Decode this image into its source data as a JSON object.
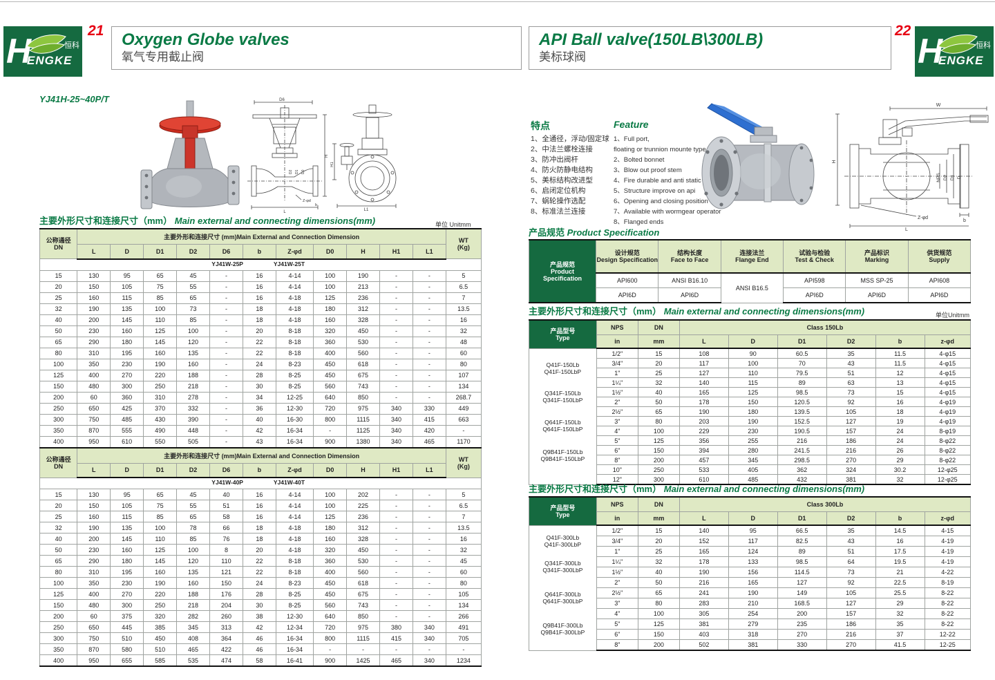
{
  "colors": {
    "brand_green": "#156a40",
    "title_green": "#0a7a45",
    "page_red": "#e60012",
    "table_header_bg": "#dfe9c4"
  },
  "brand": {
    "wordmark_initial": "H",
    "wordmark_rest": "ENGKE",
    "cn": "恒科®"
  },
  "page_left": {
    "page_number": "21",
    "title_en": "Oxygen Globe valves",
    "title_cn": "氧气专用截止阀",
    "model": "YJ41H-25~40P/T",
    "dims_title_cn": "主要外形尺寸和连接尺寸（mm）",
    "dims_title_en": "Main external and connecting dimensions(mm)",
    "unit_label": "单位 Unitmm",
    "drawing_labels": {
      "d6": "D6",
      "h": "H",
      "l": "L",
      "zd": "Z-φd",
      "b": "b",
      "d0": "D0",
      "d1": "D1",
      "d2": "D2",
      "h1": "H1",
      "l1": "L1"
    },
    "table": {
      "dn_header": "公称通径\nDN",
      "span_header": "主要外形和连接尺寸 (mm)Main External and Connection Dimension",
      "wt_header": "WT\n(Kg)",
      "columns": [
        "L",
        "D",
        "D1",
        "D2",
        "D6",
        "b",
        "Z-φd",
        "D0",
        "H",
        "H1",
        "L1"
      ],
      "sections": [
        {
          "model_p": "YJ41W-25P",
          "model_t": "YJ41W-25T",
          "rows": [
            [
              "15",
              "130",
              "95",
              "65",
              "45",
              "-",
              "16",
              "4-14",
              "100",
              "190",
              "-",
              "-",
              "5"
            ],
            [
              "20",
              "150",
              "105",
              "75",
              "55",
              "-",
              "16",
              "4-14",
              "100",
              "213",
              "-",
              "-",
              "6.5"
            ],
            [
              "25",
              "160",
              "115",
              "85",
              "65",
              "-",
              "16",
              "4-18",
              "125",
              "236",
              "-",
              "-",
              "7"
            ],
            [
              "32",
              "190",
              "135",
              "100",
              "73",
              "-",
              "18",
              "4-18",
              "180",
              "312",
              "-",
              "-",
              "13.5"
            ],
            [
              "40",
              "200",
              "145",
              "110",
              "85",
              "-",
              "18",
              "4-18",
              "160",
              "328",
              "-",
              "-",
              "16"
            ],
            [
              "50",
              "230",
              "160",
              "125",
              "100",
              "-",
              "20",
              "8-18",
              "320",
              "450",
              "-",
              "-",
              "32"
            ],
            [
              "65",
              "290",
              "180",
              "145",
              "120",
              "-",
              "22",
              "8-18",
              "360",
              "530",
              "-",
              "-",
              "48"
            ],
            [
              "80",
              "310",
              "195",
              "160",
              "135",
              "-",
              "22",
              "8-18",
              "400",
              "560",
              "-",
              "-",
              "60"
            ],
            [
              "100",
              "350",
              "230",
              "190",
              "160",
              "-",
              "24",
              "8-23",
              "450",
              "618",
              "-",
              "-",
              "80"
            ],
            [
              "125",
              "400",
              "270",
              "220",
              "188",
              "-",
              "28",
              "8-25",
              "450",
              "675",
              "-",
              "-",
              "107"
            ],
            [
              "150",
              "480",
              "300",
              "250",
              "218",
              "-",
              "30",
              "8-25",
              "560",
              "743",
              "-",
              "-",
              "134"
            ],
            [
              "200",
              "60",
              "360",
              "310",
              "278",
              "-",
              "34",
              "12-25",
              "640",
              "850",
              "-",
              "-",
              "268.7"
            ],
            [
              "250",
              "650",
              "425",
              "370",
              "332",
              "-",
              "36",
              "12-30",
              "720",
              "975",
              "340",
              "330",
              "449"
            ],
            [
              "300",
              "750",
              "485",
              "430",
              "390",
              "-",
              "40",
              "16-30",
              "800",
              "1115",
              "340",
              "415",
              "663"
            ],
            [
              "350",
              "870",
              "555",
              "490",
              "448",
              "-",
              "42",
              "16-34",
              "-",
              "1125",
              "340",
              "420",
              "-"
            ],
            [
              "400",
              "950",
              "610",
              "550",
              "505",
              "-",
              "43",
              "16-34",
              "900",
              "1380",
              "340",
              "465",
              "1170"
            ]
          ]
        },
        {
          "model_p": "YJ41W-40P",
          "model_t": "YJ41W-40T",
          "rows": [
            [
              "15",
              "130",
              "95",
              "65",
              "45",
              "40",
              "16",
              "4-14",
              "100",
              "202",
              "-",
              "-",
              "5"
            ],
            [
              "20",
              "150",
              "105",
              "75",
              "55",
              "51",
              "16",
              "4-14",
              "100",
              "225",
              "-",
              "-",
              "6.5"
            ],
            [
              "25",
              "160",
              "115",
              "85",
              "65",
              "58",
              "16",
              "4-14",
              "125",
              "236",
              "-",
              "-",
              "7"
            ],
            [
              "32",
              "190",
              "135",
              "100",
              "78",
              "66",
              "18",
              "4-18",
              "180",
              "312",
              "-",
              "-",
              "13.5"
            ],
            [
              "40",
              "200",
              "145",
              "110",
              "85",
              "76",
              "18",
              "4-18",
              "160",
              "328",
              "-",
              "-",
              "16"
            ],
            [
              "50",
              "230",
              "160",
              "125",
              "100",
              "8",
              "20",
              "4-18",
              "320",
              "450",
              "-",
              "-",
              "32"
            ],
            [
              "65",
              "290",
              "180",
              "145",
              "120",
              "110",
              "22",
              "8-18",
              "360",
              "530",
              "-",
              "-",
              "45"
            ],
            [
              "80",
              "310",
              "195",
              "160",
              "135",
              "121",
              "22",
              "8-18",
              "400",
              "560",
              "-",
              "-",
              "60"
            ],
            [
              "100",
              "350",
              "230",
              "190",
              "160",
              "150",
              "24",
              "8-23",
              "450",
              "618",
              "-",
              "-",
              "80"
            ],
            [
              "125",
              "400",
              "270",
              "220",
              "188",
              "176",
              "28",
              "8-25",
              "450",
              "675",
              "-",
              "-",
              "105"
            ],
            [
              "150",
              "480",
              "300",
              "250",
              "218",
              "204",
              "30",
              "8-25",
              "560",
              "743",
              "-",
              "-",
              "134"
            ],
            [
              "200",
              "60",
              "375",
              "320",
              "282",
              "260",
              "38",
              "12-30",
              "640",
              "850",
              "-",
              "-",
              "266"
            ],
            [
              "250",
              "650",
              "445",
              "385",
              "345",
              "313",
              "42",
              "12-34",
              "720",
              "975",
              "380",
              "340",
              "491"
            ],
            [
              "300",
              "750",
              "510",
              "450",
              "408",
              "364",
              "46",
              "16-34",
              "800",
              "1115",
              "415",
              "340",
              "705"
            ],
            [
              "350",
              "870",
              "580",
              "510",
              "465",
              "422",
              "46",
              "16-34",
              "-",
              "-",
              "-",
              "-",
              "-"
            ],
            [
              "400",
              "950",
              "655",
              "585",
              "535",
              "474",
              "58",
              "16-41",
              "900",
              "1425",
              "465",
              "340",
              "1234"
            ]
          ]
        }
      ]
    }
  },
  "page_right": {
    "page_number": "22",
    "title_en": "API Ball valve(150LB\\300LB)",
    "title_cn": "美标球阀",
    "features_cn_title": "特点",
    "features_en_title": "Feature",
    "features_cn": [
      "1、全通径，浮动/固定球",
      "2、中法兰螺栓连接",
      "3、防冲出阀杆",
      "4、防火防静电结构",
      "5、美标结构改进型",
      "6、启闭定位机构",
      "7、蜗轮操作选配",
      "8、标准法兰连接"
    ],
    "features_en": [
      "1、Full port,\nfloating or trunnion mounte type",
      "2、Bolted bonnet",
      "3、Blow out proof stem",
      "4、Fire durable and anti static safety",
      "5、Structure improve on api",
      "6、Opening and closing position",
      "7、Available with wormgear operator",
      "8、Flanged ends"
    ],
    "spec_title_cn": "产品规范",
    "spec_title_en": "Product Specification",
    "spec_table": {
      "row_header": "产品规范\nProduct\nSpecification",
      "cols": [
        {
          "cn": "设计规范",
          "en": "Design Specification",
          "top": "API600",
          "bottom": "API6D"
        },
        {
          "cn": "结构长度",
          "en": "Face to Face",
          "top": "ANSI B16.10",
          "bottom": "API6D"
        },
        {
          "cn": "连接法兰",
          "en": "Flange End",
          "merged": "ANSI B16.5"
        },
        {
          "cn": "试验与检验",
          "en": "Test & Check",
          "top": "API598",
          "bottom": "API6D"
        },
        {
          "cn": "产品标识",
          "en": "Marking",
          "top": "MSS SP-25",
          "bottom": "API6D"
        },
        {
          "cn": "供货规范",
          "en": "Supply",
          "top": "API608",
          "bottom": "API6D"
        }
      ]
    },
    "dims_title_cn": "主要外形尺寸和连接尺寸（mm）",
    "dims_title_en": "Main external and connecting dimensions(mm)",
    "unit_label": "单位Unitmm",
    "drawing_labels": {
      "w": "W",
      "h": "H",
      "nps": "NPS",
      "d2": "D2",
      "d1": "D1",
      "d": "D",
      "zd": "Z-φd",
      "b": "b",
      "l": "L"
    },
    "table150": {
      "type_header": "产品型号\nType",
      "nps_header": "NPS",
      "dn_header": "DN",
      "in_label": "in",
      "mm_label": "mm",
      "class_header": "Class 150Lb",
      "columns": [
        "L",
        "D",
        "D1",
        "D2",
        "b",
        "z-φd"
      ],
      "type_groups": [
        "Q41F-150Lb\nQ41F-150LbP",
        "Q341F-150Lb\nQ341F-150LbP",
        "Q641F-150Lb\nQ641F-150LbP",
        "Q9B41F-150Lb\nQ9B41F-150LbP"
      ],
      "rows": [
        [
          "1/2\"",
          "15",
          "108",
          "90",
          "60.5",
          "35",
          "11.5",
          "4-φ15"
        ],
        [
          "3/4\"",
          "20",
          "117",
          "100",
          "70",
          "43",
          "11.5",
          "4-φ15"
        ],
        [
          "1\"",
          "25",
          "127",
          "110",
          "79.5",
          "51",
          "12",
          "4-φ15"
        ],
        [
          "1¼\"",
          "32",
          "140",
          "115",
          "89",
          "63",
          "13",
          "4-φ15"
        ],
        [
          "1½\"",
          "40",
          "165",
          "125",
          "98.5",
          "73",
          "15",
          "4-φ15"
        ],
        [
          "2\"",
          "50",
          "178",
          "150",
          "120.5",
          "92",
          "16",
          "4-φ19"
        ],
        [
          "2½\"",
          "65",
          "190",
          "180",
          "139.5",
          "105",
          "18",
          "4-φ19"
        ],
        [
          "3\"",
          "80",
          "203",
          "190",
          "152.5",
          "127",
          "19",
          "4-φ19"
        ],
        [
          "4\"",
          "100",
          "229",
          "230",
          "190.5",
          "157",
          "24",
          "8-φ19"
        ],
        [
          "5\"",
          "125",
          "356",
          "255",
          "216",
          "186",
          "24",
          "8-φ22"
        ],
        [
          "6\"",
          "150",
          "394",
          "280",
          "241.5",
          "216",
          "26",
          "8-φ22"
        ],
        [
          "8\"",
          "200",
          "457",
          "345",
          "298.5",
          "270",
          "29",
          "8-φ22"
        ],
        [
          "10\"",
          "250",
          "533",
          "405",
          "362",
          "324",
          "30.2",
          "12-φ25"
        ],
        [
          "12\"",
          "300",
          "610",
          "485",
          "432",
          "381",
          "32",
          "12-φ25"
        ]
      ]
    },
    "table300": {
      "type_header": "产品型号\nType",
      "nps_header": "NPS",
      "dn_header": "DN",
      "in_label": "in",
      "mm_label": "mm",
      "class_header": "Class 300Lb",
      "columns": [
        "L",
        "D",
        "D1",
        "D2",
        "b",
        "z-φd"
      ],
      "type_groups": [
        "Q41F-300Lb\nQ41F-300LbP",
        "Q341F-300Lb\nQ341F-300LbP",
        "Q641F-300Lb\nQ641F-300LbP",
        "Q9B41F-300Lb\nQ9B41F-300LbP"
      ],
      "rows": [
        [
          "1/2\"",
          "15",
          "140",
          "95",
          "66.5",
          "35",
          "14.5",
          "4-15"
        ],
        [
          "3/4\"",
          "20",
          "152",
          "117",
          "82.5",
          "43",
          "16",
          "4-19"
        ],
        [
          "1\"",
          "25",
          "165",
          "124",
          "89",
          "51",
          "17.5",
          "4-19"
        ],
        [
          "1¼\"",
          "32",
          "178",
          "133",
          "98.5",
          "64",
          "19.5",
          "4-19"
        ],
        [
          "1½\"",
          "40",
          "190",
          "156",
          "114.5",
          "73",
          "21",
          "4-22"
        ],
        [
          "2\"",
          "50",
          "216",
          "165",
          "127",
          "92",
          "22.5",
          "8-19"
        ],
        [
          "2½\"",
          "65",
          "241",
          "190",
          "149",
          "105",
          "25.5",
          "8-22"
        ],
        [
          "3\"",
          "80",
          "283",
          "210",
          "168.5",
          "127",
          "29",
          "8-22"
        ],
        [
          "4\"",
          "100",
          "305",
          "254",
          "200",
          "157",
          "32",
          "8-22"
        ],
        [
          "5\"",
          "125",
          "381",
          "279",
          "235",
          "186",
          "35",
          "8-22"
        ],
        [
          "6\"",
          "150",
          "403",
          "318",
          "270",
          "216",
          "37",
          "12-22"
        ],
        [
          "8\"",
          "200",
          "502",
          "381",
          "330",
          "270",
          "41.5",
          "12-25"
        ]
      ]
    }
  }
}
